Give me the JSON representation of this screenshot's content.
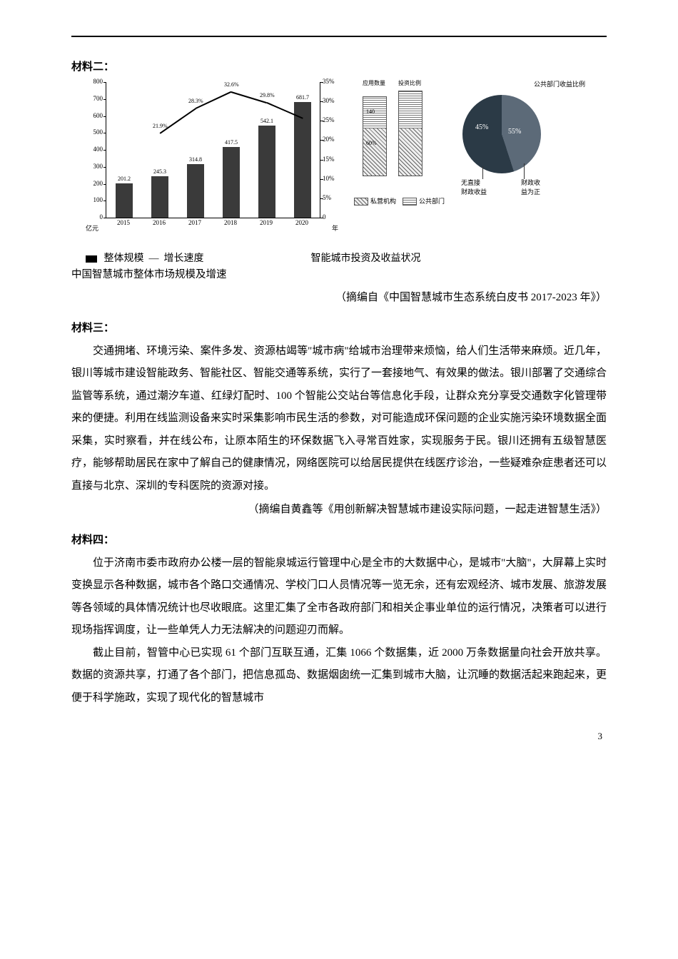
{
  "page_number": "3",
  "headings": {
    "mat2": "材料二：",
    "mat3": "材料三：",
    "mat4": "材料四："
  },
  "bar_chart": {
    "title": "中国智慧城市整体市场规模及增速",
    "legend_scale": "整体规模",
    "legend_growth": "增长速度",
    "y_left_max": 800,
    "y_left_step": 100,
    "y_left_unit": "亿元",
    "y_right_max": 35,
    "y_right_step": 5,
    "y_right_unit": "年",
    "y_left_ticks": [
      "0",
      "100",
      "200",
      "300",
      "400",
      "500",
      "600",
      "700",
      "800"
    ],
    "y_right_ticks": [
      "0",
      "5%",
      "10%",
      "15%",
      "20%",
      "25%",
      "30%",
      "35%"
    ],
    "categories": [
      "2015",
      "2016",
      "2017",
      "2018",
      "2019",
      "2020"
    ],
    "bar_color": "#3a3a3a",
    "bar_values": [
      201.2,
      245.3,
      314.8,
      417.5,
      542.1,
      681.7
    ],
    "line_values_pct": [
      null,
      21.9,
      28.3,
      32.6,
      29.8,
      25.8
    ],
    "line_labels": [
      "",
      "21.9%",
      "28.3%",
      "32.6%",
      "29.8%",
      ""
    ]
  },
  "mini_chart": {
    "col1_label": "应用数量",
    "col2_label": "投资比例",
    "top_values": [
      "140",
      "",
      ""
    ],
    "bottom_values": [
      "60%",
      "",
      ""
    ],
    "legend_private": "私营机构",
    "legend_public": "公共部门"
  },
  "pie_chart": {
    "title": "智能城市投资及收益状况",
    "top_label": "公共部门收益比例",
    "slice_a_pct": 45,
    "slice_b_pct": 55,
    "slice_a_label": "45%",
    "slice_b_label": "55%",
    "slice_a_color": "#5c6a78",
    "slice_b_color": "#2b3a46",
    "callout_left": "无直接\n财政收益",
    "callout_right": "财政收\n益为正"
  },
  "source_chart": "（摘编自《中国智慧城市生态系统白皮书 2017-2023 年》）",
  "mat3_text": "交通拥堵、环境污染、案件多发、资源枯竭等\"城市病\"给城市治理带来烦恼，给人们生活带来麻烦。近几年，银川等城市建设智能政务、智能社区、智能交通等系统，实行了一套接地气、有效果的做法。银川部署了交通综合监管等系统，通过潮汐车道、红绿灯配时、100 个智能公交站台等信息化手段，让群众充分享受交通数字化管理带来的便捷。利用在线监测设备来实时采集影响市民生活的参数，对可能造成环保问题的企业实施污染环境数据全面采集，实时察看，并在线公布，让原本陌生的环保数据飞入寻常百姓家，实现服务于民。银川还拥有五级智慧医疗，能够帮助居民在家中了解自己的健康情况，网络医院可以给居民提供在线医疗诊治，一些疑难杂症患者还可以直接与北京、深圳的专科医院的资源对接。",
  "source_mat3": "（摘编自黄鑫等《用创新解决智慧城市建设实际问题，一起走进智慧生活》）",
  "mat4_p1": "位于济南市委市政府办公楼一层的智能泉城运行管理中心是全市的大数据中心，是城市\"大脑\"，大屏幕上实时变换显示各种数据，城市各个路口交通情况、学校门口人员情况等一览无余，还有宏观经济、城市发展、旅游发展等各领域的具体情况统计也尽收眼底。这里汇集了全市各政府部门和相关企事业单位的运行情况，决策者可以进行现场指挥调度，让一些单凭人力无法解决的问题迎刃而解。",
  "mat4_p2": "截止目前，智管中心已实现 61 个部门互联互通，汇集 1066 个数据集，近 2000 万条数据量向社会开放共享。数据的资源共享，打通了各个部门，把信息孤岛、数据烟囱统一汇集到城市大脑，让沉睡的数据活起来跑起来，更便于科学施政，实现了现代化的智慧城市"
}
